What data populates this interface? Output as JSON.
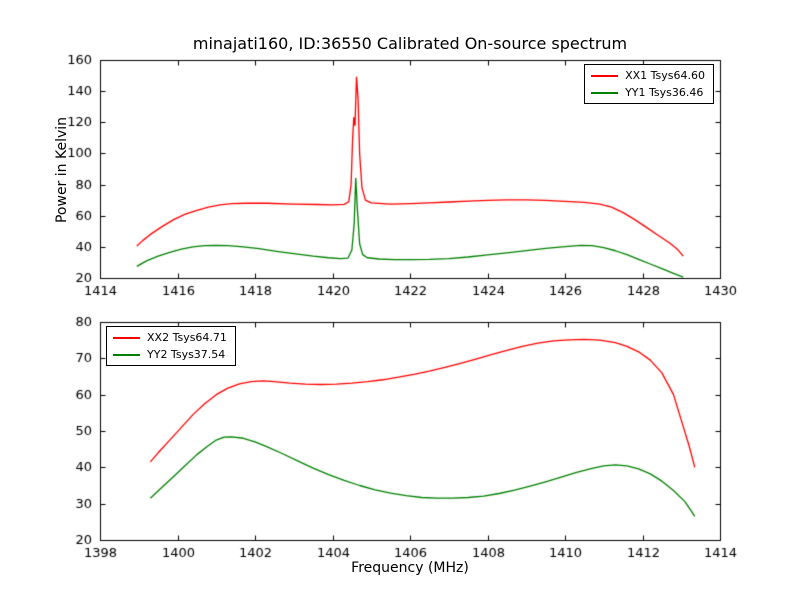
{
  "figure": {
    "background": "#ffffff",
    "axis_color": "#000000"
  },
  "chart_data": [
    {
      "type": "line",
      "title": "minajati160, ID:36550 Calibrated On-source spectrum",
      "xlabel": "",
      "ylabel": "Power in Kelvin",
      "xlim": [
        1414,
        1430
      ],
      "ylim": [
        20,
        160
      ],
      "xticks": [
        1414,
        1416,
        1418,
        1420,
        1422,
        1424,
        1426,
        1428,
        1430
      ],
      "yticks": [
        20,
        40,
        60,
        80,
        100,
        120,
        140,
        160
      ],
      "grid": false,
      "legend_position": "top-right",
      "series": [
        {
          "name": "XX1 Tsys64.60",
          "color": "#ff0000",
          "x": [
            1414.95,
            1415.1,
            1415.3,
            1415.6,
            1415.9,
            1416.2,
            1416.5,
            1416.8,
            1417.1,
            1417.4,
            1417.8,
            1418.3,
            1419.0,
            1419.6,
            1420.0,
            1420.3,
            1420.42,
            1420.48,
            1420.52,
            1420.55,
            1420.58,
            1420.62,
            1420.66,
            1420.7,
            1420.76,
            1420.85,
            1421.0,
            1421.5,
            1422.0,
            1422.5,
            1423.0,
            1423.5,
            1424.0,
            1424.5,
            1425.0,
            1425.5,
            1426.0,
            1426.5,
            1426.9,
            1427.2,
            1427.5,
            1427.8,
            1428.1,
            1428.4,
            1428.7,
            1428.9,
            1429.05
          ],
          "y": [
            40.5,
            44,
            48,
            53,
            57.5,
            61,
            63.5,
            65.5,
            67,
            67.8,
            68,
            68,
            67.5,
            67.2,
            67.0,
            67.3,
            69,
            80,
            110,
            123,
            118,
            149,
            135,
            100,
            78,
            70,
            68.2,
            67.5,
            67.8,
            68.2,
            68.8,
            69.4,
            69.8,
            70.2,
            70.2,
            69.8,
            69.2,
            68.6,
            67.5,
            65.5,
            62,
            57.5,
            52.5,
            47.5,
            42.5,
            38.5,
            34
          ]
        },
        {
          "name": "YY1 Tsys36.46",
          "color": "#008000",
          "x": [
            1414.95,
            1415.2,
            1415.5,
            1415.8,
            1416.1,
            1416.4,
            1416.7,
            1417.0,
            1417.3,
            1417.7,
            1418.1,
            1418.6,
            1419.1,
            1419.5,
            1419.9,
            1420.2,
            1420.4,
            1420.5,
            1420.56,
            1420.6,
            1420.64,
            1420.7,
            1420.78,
            1420.9,
            1421.2,
            1421.6,
            1422.0,
            1422.5,
            1423.0,
            1423.5,
            1424.0,
            1424.5,
            1425.0,
            1425.5,
            1426.0,
            1426.4,
            1426.7,
            1427.0,
            1427.3,
            1427.6,
            1427.9,
            1428.2,
            1428.5,
            1428.8,
            1429.05
          ],
          "y": [
            27.5,
            31,
            34,
            36.5,
            38.5,
            40,
            40.8,
            41,
            40.8,
            40,
            38.8,
            37,
            35.3,
            34,
            33,
            32.5,
            32.8,
            38,
            55,
            84,
            65,
            42,
            35,
            33,
            32.2,
            31.8,
            31.8,
            32,
            32.5,
            33.5,
            34.8,
            36.2,
            37.6,
            39,
            40.2,
            41,
            40.8,
            39.5,
            37.5,
            35,
            32,
            29,
            26,
            23,
            20.5
          ]
        }
      ]
    },
    {
      "type": "line",
      "title": "",
      "xlabel": "Frequency (MHz)",
      "ylabel": "",
      "xlim": [
        1398,
        1414
      ],
      "ylim": [
        20,
        80
      ],
      "xticks": [
        1398,
        1400,
        1402,
        1404,
        1406,
        1408,
        1410,
        1412,
        1414
      ],
      "yticks": [
        20,
        30,
        40,
        50,
        60,
        70,
        80
      ],
      "grid": false,
      "legend_position": "top-left",
      "series": [
        {
          "name": "XX2 Tsys64.71",
          "color": "#ff0000",
          "x": [
            1399.3,
            1399.5,
            1399.8,
            1400.1,
            1400.4,
            1400.7,
            1401.0,
            1401.3,
            1401.6,
            1401.9,
            1402.2,
            1402.5,
            1402.9,
            1403.3,
            1403.7,
            1404.1,
            1404.5,
            1404.9,
            1405.3,
            1405.7,
            1406.1,
            1406.5,
            1406.9,
            1407.3,
            1407.7,
            1408.1,
            1408.5,
            1408.9,
            1409.3,
            1409.7,
            1410.1,
            1410.5,
            1410.9,
            1411.3,
            1411.6,
            1411.9,
            1412.2,
            1412.5,
            1412.8,
            1413.0,
            1413.2,
            1413.35
          ],
          "y": [
            41.5,
            44,
            47.5,
            51,
            54.5,
            57.5,
            60,
            61.8,
            63,
            63.6,
            63.8,
            63.6,
            63.2,
            62.9,
            62.8,
            62.9,
            63.2,
            63.6,
            64.1,
            64.8,
            65.6,
            66.5,
            67.5,
            68.6,
            69.8,
            71,
            72.2,
            73.3,
            74.2,
            74.8,
            75.1,
            75.2,
            75.0,
            74.3,
            73.3,
            71.8,
            69.5,
            66,
            60,
            53,
            46,
            40
          ]
        },
        {
          "name": "YY2 Tsys37.54",
          "color": "#008000",
          "x": [
            1399.3,
            1399.6,
            1399.9,
            1400.2,
            1400.5,
            1400.8,
            1401.0,
            1401.2,
            1401.4,
            1401.7,
            1402.0,
            1402.3,
            1402.7,
            1403.1,
            1403.5,
            1403.9,
            1404.3,
            1404.7,
            1405.1,
            1405.5,
            1405.9,
            1406.3,
            1406.7,
            1407.1,
            1407.5,
            1407.9,
            1408.3,
            1408.7,
            1409.1,
            1409.5,
            1409.9,
            1410.3,
            1410.7,
            1411.0,
            1411.3,
            1411.6,
            1411.9,
            1412.2,
            1412.5,
            1412.8,
            1413.1,
            1413.35
          ],
          "y": [
            31.5,
            34.5,
            37.5,
            40.5,
            43.5,
            46,
            47.5,
            48.3,
            48.4,
            48,
            47,
            45.7,
            43.8,
            41.8,
            39.8,
            38,
            36.4,
            35,
            33.8,
            32.9,
            32.2,
            31.7,
            31.5,
            31.5,
            31.7,
            32.1,
            32.8,
            33.7,
            34.8,
            36,
            37.3,
            38.6,
            39.7,
            40.4,
            40.7,
            40.4,
            39.6,
            38.2,
            36.2,
            33.6,
            30.5,
            26.5
          ]
        }
      ]
    }
  ]
}
